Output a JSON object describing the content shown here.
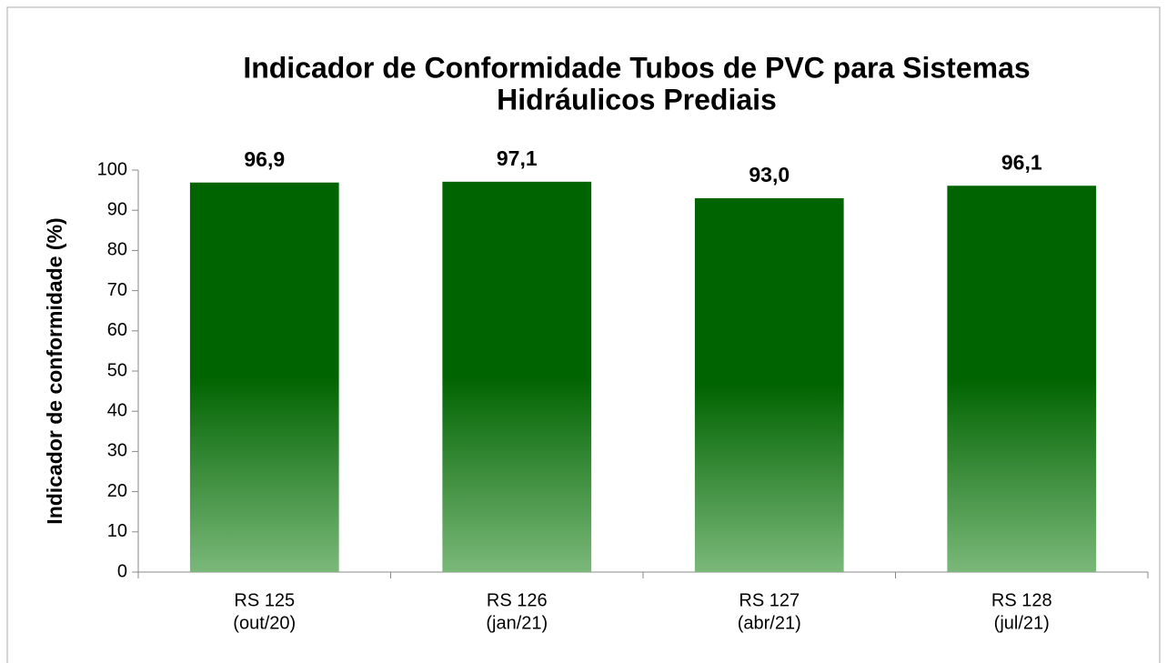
{
  "chart_data": {
    "type": "bar",
    "title": "Indicador de Conformidade Tubos de PVC para Sistemas Hidráulicos Prediais",
    "y_label": "Indicador de conformidade (%)",
    "categories": [
      "RS 125\n(out/20)",
      "RS 126\n(jan/21)",
      "RS 127\n(abr/21)",
      "RS 128\n(jul/21)"
    ],
    "values": [
      96.9,
      97.1,
      93.0,
      96.1
    ],
    "value_labels": [
      "96,9",
      "97,1",
      "93,0",
      "96,1"
    ],
    "color": "#006400",
    "ylim": [
      0,
      100
    ],
    "yticks": [
      0,
      10,
      20,
      30,
      40,
      50,
      60,
      70,
      80,
      90,
      100
    ],
    "grid": false
  }
}
